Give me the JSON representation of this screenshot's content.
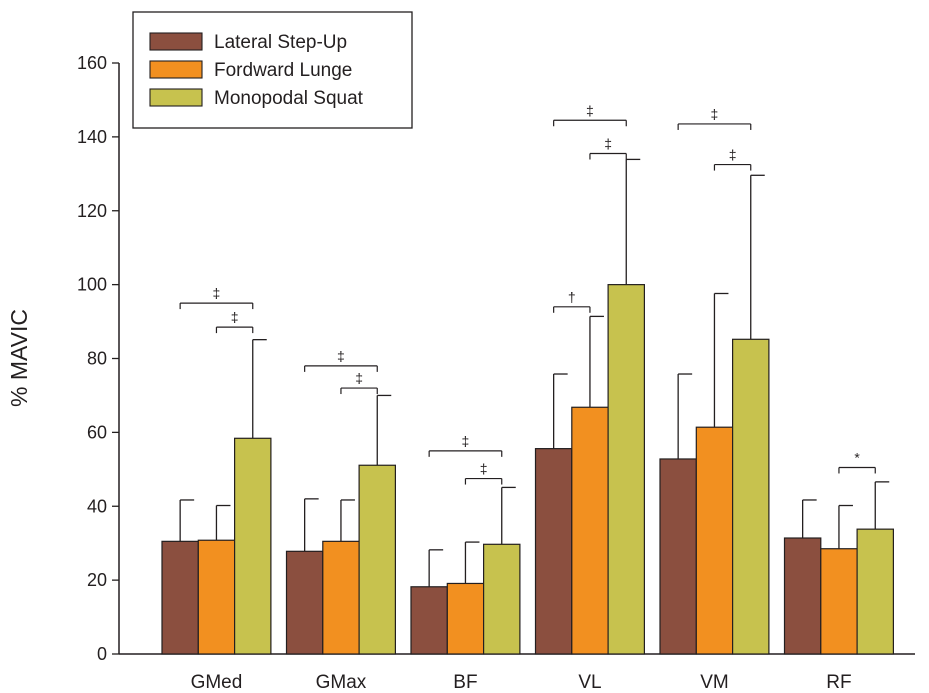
{
  "chart_data": {
    "type": "bar",
    "title": "",
    "xlabel": "",
    "ylabel": "% MAVIC",
    "ylim": [
      0,
      160
    ],
    "yticks": [
      "0",
      "20",
      "40",
      "60",
      "80",
      "100",
      "120",
      "140",
      "160"
    ],
    "grid": false,
    "legend_position": "top-left",
    "categories": [
      "GMed",
      "GMax",
      "BF",
      "VL",
      "VM",
      "RF"
    ],
    "series": [
      {
        "name": "Lateral Step-Up",
        "color": "#8b4f3f",
        "values": [
          30.5,
          27.8,
          18.2,
          55.6,
          52.8,
          31.4
        ],
        "error_upper": [
          41.7,
          42.0,
          28.2,
          75.8,
          75.8,
          41.7
        ]
      },
      {
        "name": "Fordward Lunge",
        "color": "#f29020",
        "values": [
          30.8,
          30.5,
          19.1,
          66.8,
          61.4,
          28.5
        ],
        "error_upper": [
          40.2,
          41.7,
          30.3,
          91.4,
          97.6,
          40.2
        ]
      },
      {
        "name": "Monopodal Squat",
        "color": "#c7c24e",
        "values": [
          58.4,
          51.1,
          29.7,
          100.0,
          85.2,
          33.8
        ],
        "error_upper": [
          85.1,
          70.0,
          45.1,
          133.9,
          129.6,
          46.6
        ]
      }
    ],
    "annotations": [
      {
        "category": "GMed",
        "from_series": 0,
        "to_series": 2,
        "y": 95.0,
        "symbol": "‡"
      },
      {
        "category": "GMed",
        "from_series": 1,
        "to_series": 2,
        "y": 88.5,
        "symbol": "‡"
      },
      {
        "category": "GMax",
        "from_series": 0,
        "to_series": 2,
        "y": 78.0,
        "symbol": "‡"
      },
      {
        "category": "GMax",
        "from_series": 1,
        "to_series": 2,
        "y": 72.0,
        "symbol": "‡"
      },
      {
        "category": "BF",
        "from_series": 0,
        "to_series": 2,
        "y": 55.0,
        "symbol": "‡"
      },
      {
        "category": "BF",
        "from_series": 1,
        "to_series": 2,
        "y": 47.5,
        "symbol": "‡"
      },
      {
        "category": "VL",
        "from_series": 0,
        "to_series": 2,
        "y": 144.5,
        "symbol": "‡"
      },
      {
        "category": "VL",
        "from_series": 1,
        "to_series": 2,
        "y": 135.5,
        "symbol": "‡"
      },
      {
        "category": "VL",
        "from_series": 0,
        "to_series": 1,
        "y": 94.0,
        "symbol": "†"
      },
      {
        "category": "VM",
        "from_series": 0,
        "to_series": 2,
        "y": 143.5,
        "symbol": "‡"
      },
      {
        "category": "VM",
        "from_series": 1,
        "to_series": 2,
        "y": 132.5,
        "symbol": "‡"
      },
      {
        "category": "RF",
        "from_series": 1,
        "to_series": 2,
        "y": 50.5,
        "symbol": "*"
      }
    ]
  }
}
